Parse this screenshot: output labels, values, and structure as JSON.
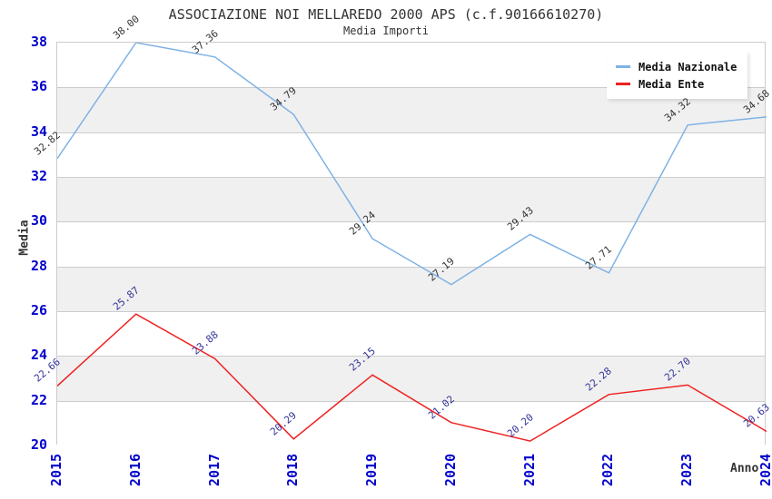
{
  "chart_data": {
    "type": "line",
    "title": "ASSOCIAZIONE NOI MELLAREDO 2000 APS (c.f.90166610270)",
    "subtitle": "Media Importi",
    "x": [
      2015,
      2016,
      2017,
      2018,
      2019,
      2020,
      2021,
      2022,
      2023,
      2024
    ],
    "series": [
      {
        "name": "Media Nazionale",
        "color": "#7EB2E5",
        "label_color": "#333333",
        "values": [
          32.82,
          38.0,
          37.36,
          34.79,
          29.24,
          27.19,
          29.43,
          27.71,
          34.32,
          34.68
        ]
      },
      {
        "name": "Media Ente",
        "color": "#EE2222",
        "label_color": "#333399",
        "values": [
          22.66,
          25.87,
          23.88,
          20.29,
          23.15,
          21.02,
          20.2,
          22.28,
          22.7,
          20.63
        ]
      }
    ],
    "xlabel": "Anno",
    "ylabel": "Media",
    "ylim": [
      20,
      38
    ],
    "ytick_step": 2,
    "grid": "horizontal-bands",
    "legend_position": "top-right",
    "value_label_decimals": 2
  },
  "colors": {
    "tick_label": "#0000CC",
    "grid_line": "#cccccc",
    "plot_border": "#cccccc",
    "band_light": "#ffffff",
    "band_shade": "#f0f0f0",
    "title_text": "#333333",
    "axis_title": "#333333",
    "legend_text": "#111111",
    "legend_bg": "#ffffff"
  }
}
